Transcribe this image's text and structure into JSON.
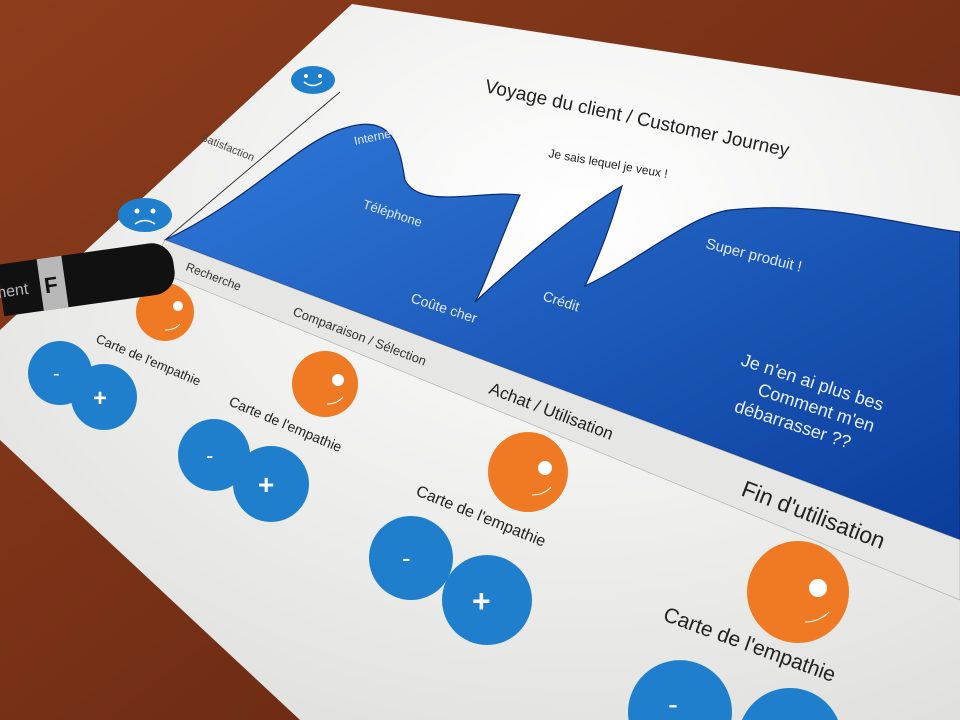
{
  "map": {
    "title": "Voyage du client / Customer Journey",
    "axis_label": "Satisfaction",
    "curve_labels": {
      "internet": "Internet",
      "telephone": "Téléphone",
      "coute_cher": "Coûte cher",
      "je_sais": "Je sais lequel je veux !",
      "credit": "Crédit",
      "super_produit": "Super produit !",
      "end_line1": "Je n'en ai plus bes",
      "end_line2": "Comment m'en",
      "end_line3": "débarrasser ??"
    },
    "stages": [
      "Recherche",
      "Comparaison / Sélection",
      "Achat / Utilisation",
      "Fin d'utilisation"
    ],
    "empathy_label": "Carte de l'empathie",
    "minus": "-",
    "plus": "+"
  },
  "marker": {
    "text": "ment",
    "cap_letter": "F"
  },
  "colors": {
    "wood": "#7a3418",
    "paper": "#f4f4f2",
    "curve_blue": "#1457c0",
    "sticker_blue": "#1f7fcc",
    "sticker_orange": "#f07a24"
  }
}
